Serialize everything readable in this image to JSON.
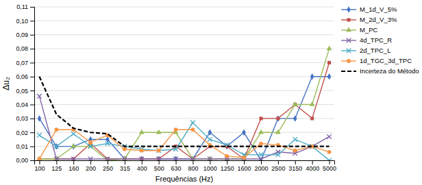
{
  "chart_data": {
    "type": "line",
    "x_label": "Frequências (Hz)",
    "y_label": "Δu₂",
    "categories": [
      "100",
      "125",
      "160",
      "200",
      "250",
      "315",
      "400",
      "500",
      "630",
      "800",
      "1000",
      "1250",
      "1600",
      "2000",
      "2500",
      "3150",
      "4000",
      "5000"
    ],
    "series": [
      {
        "name": "M_1d_V_5%",
        "color": "#4472C4",
        "marker": "diamond",
        "line_style": "solid",
        "values": [
          0.03,
          0.01,
          0.01,
          0.015,
          0.015,
          0.001,
          0.001,
          0.001,
          0.001,
          0.001,
          0.02,
          0.01,
          0.02,
          0.0,
          0.03,
          0.03,
          0.06,
          0.06
        ]
      },
      {
        "name": "M_2d_V_3%",
        "color": "#C0504D",
        "marker": "square",
        "line_style": "solid",
        "values": [
          0.001,
          0.001,
          0.001,
          0.012,
          0.001,
          0.001,
          0.001,
          0.001,
          0.01,
          0.001,
          0.01,
          0.01,
          0.001,
          0.03,
          0.03,
          0.04,
          0.03,
          0.07
        ]
      },
      {
        "name": "M_PC",
        "color": "#9BBB59",
        "marker": "triangle",
        "line_style": "solid",
        "values": [
          0.001,
          0.001,
          0.01,
          0.01,
          0.0,
          0.001,
          0.02,
          0.02,
          0.02,
          0.001,
          0.001,
          0.001,
          0.001,
          0.02,
          0.02,
          0.04,
          0.04,
          0.08
        ]
      },
      {
        "name": "4d_TPC_R",
        "color": "#8064A2",
        "marker": "x",
        "line_style": "solid",
        "values": [
          0.046,
          0.001,
          0.001,
          0.001,
          0.001,
          0.001,
          0.001,
          0.001,
          0.001,
          0.001,
          0.001,
          0.001,
          0.001,
          0.001,
          0.006,
          0.005,
          0.01,
          0.017
        ]
      },
      {
        "name": "2d_TPC_L",
        "color": "#4BACC6",
        "marker": "x",
        "line_style": "solid",
        "values": [
          0.018,
          0.01,
          0.019,
          0.01,
          0.012,
          0.01,
          0.008,
          0.007,
          0.008,
          0.027,
          0.015,
          0.011,
          0.004,
          0.004,
          0.004,
          0.015,
          0.01,
          0.0
        ]
      },
      {
        "name": "1d_TGC_3d_TPC",
        "color": "#F79646",
        "marker": "circle",
        "line_style": "solid",
        "values": [
          0.001,
          0.022,
          0.022,
          0.013,
          0.018,
          0.008,
          0.007,
          0.007,
          0.022,
          0.022,
          0.011,
          0.003,
          0.002,
          0.012,
          0.011,
          0.007,
          0.01,
          0.006
        ]
      },
      {
        "name": "Incerteza do Método",
        "color": "#000000",
        "line_style": "dashed",
        "values": [
          0.06,
          0.033,
          0.023,
          0.02,
          0.019,
          0.01,
          0.01,
          0.01,
          0.01,
          0.01,
          0.01,
          0.01,
          0.01,
          0.01,
          0.01,
          0.01,
          0.01,
          0.01
        ]
      }
    ],
    "ylim": [
      0.0,
      0.11
    ],
    "yticks": [
      {
        "value": 0.0,
        "label": "0,00"
      },
      {
        "value": 0.01,
        "label": "0,01"
      },
      {
        "value": 0.02,
        "label": "0,02"
      },
      {
        "value": 0.03,
        "label": "0,03"
      },
      {
        "value": 0.04,
        "label": "0,04"
      },
      {
        "value": 0.05,
        "label": "0,05"
      },
      {
        "value": 0.06,
        "label": "0,06"
      },
      {
        "value": 0.07,
        "label": "0,07"
      },
      {
        "value": 0.08,
        "label": "0,08"
      },
      {
        "value": 0.09,
        "label": "0,09"
      },
      {
        "value": 0.1,
        "label": "0,10"
      },
      {
        "value": 0.11,
        "label": "0,11"
      }
    ],
    "grid": true,
    "legend": "right"
  }
}
